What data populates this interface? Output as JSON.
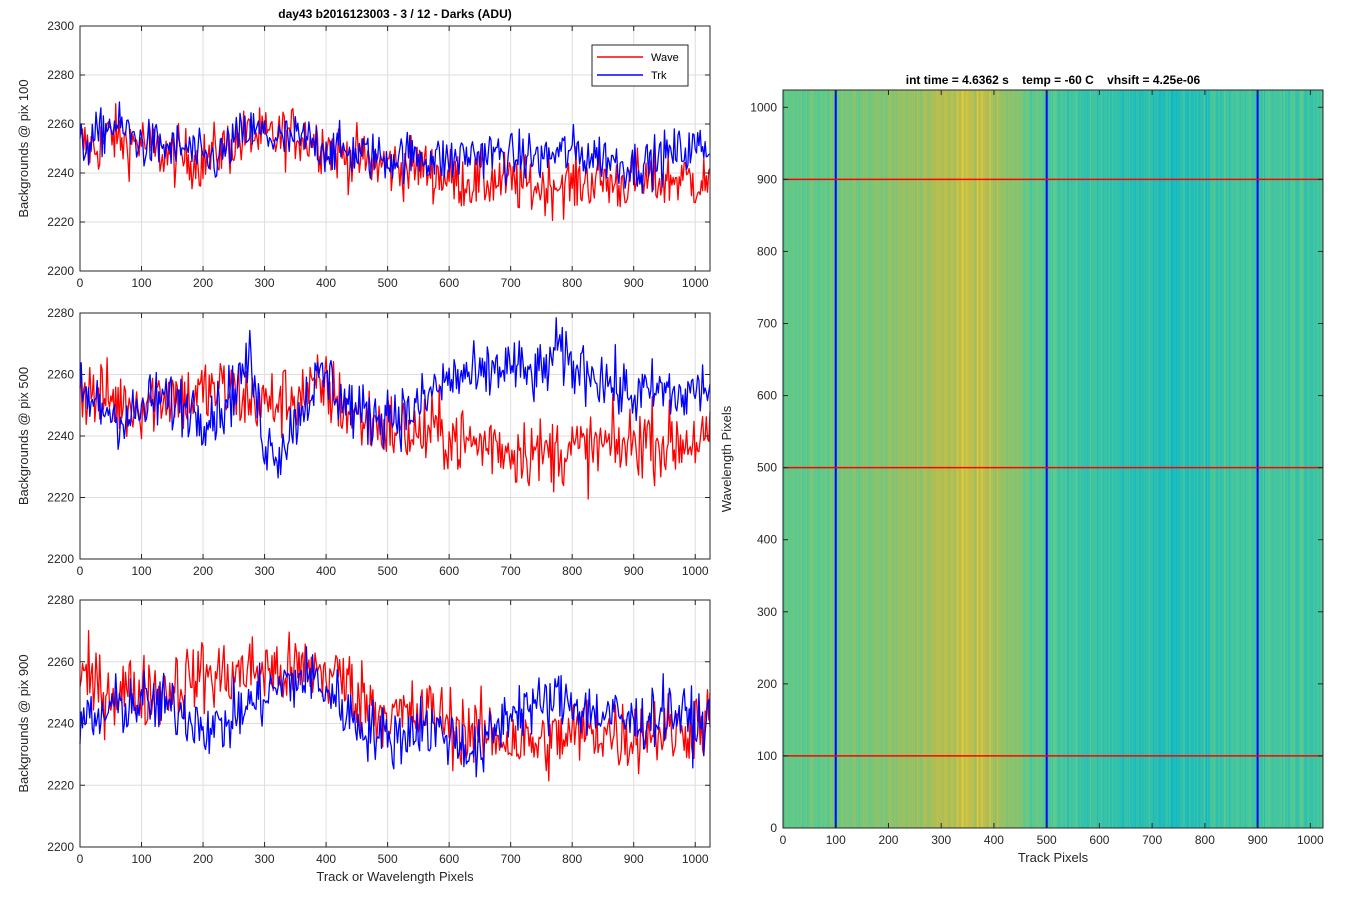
{
  "figure": {
    "main_title": "day43 b2016123003 - 3 / 12 - Darks (ADU)"
  },
  "chart_data": [
    {
      "type": "line",
      "id": "top",
      "ylabel": "Backgrounds @ pix 100",
      "xlabel": "",
      "xlim": [
        0,
        1024
      ],
      "ylim": [
        2200,
        2300
      ],
      "xticks": [
        0,
        100,
        200,
        300,
        400,
        500,
        600,
        700,
        800,
        900,
        1000
      ],
      "yticks": [
        2200,
        2220,
        2240,
        2260,
        2280,
        2300
      ],
      "grid": true,
      "legend_position": "top-right",
      "series": [
        {
          "name": "Wave",
          "color": "#ff0000",
          "x": [
            0,
            25,
            50,
            75,
            100,
            125,
            150,
            175,
            200,
            225,
            250,
            275,
            300,
            325,
            350,
            375,
            400,
            425,
            450,
            475,
            500,
            525,
            550,
            575,
            600,
            625,
            650,
            675,
            700,
            725,
            750,
            775,
            800,
            825,
            850,
            875,
            900,
            925,
            950,
            975,
            1000,
            1024
          ],
          "y": [
            2252,
            2250,
            2256,
            2252,
            2253,
            2249,
            2247,
            2246,
            2245,
            2249,
            2252,
            2255,
            2254,
            2255,
            2256,
            2254,
            2252,
            2247,
            2246,
            2244,
            2243,
            2242,
            2243,
            2240,
            2238,
            2237,
            2236,
            2237,
            2236,
            2235,
            2234,
            2236,
            2235,
            2237,
            2237,
            2235,
            2238,
            2236,
            2237,
            2238,
            2237,
            2236
          ],
          "noise": 6
        },
        {
          "name": "Trk",
          "color": "#0000ff",
          "x": [
            0,
            25,
            50,
            75,
            100,
            125,
            150,
            175,
            200,
            225,
            250,
            275,
            300,
            325,
            350,
            375,
            400,
            425,
            450,
            475,
            500,
            525,
            550,
            575,
            600,
            625,
            650,
            675,
            700,
            725,
            750,
            775,
            800,
            825,
            850,
            875,
            900,
            925,
            950,
            975,
            1000,
            1024
          ],
          "y": [
            2250,
            2254,
            2260,
            2257,
            2252,
            2251,
            2250,
            2250,
            2245,
            2246,
            2253,
            2257,
            2256,
            2253,
            2254,
            2253,
            2250,
            2249,
            2248,
            2247,
            2246,
            2247,
            2247,
            2246,
            2245,
            2247,
            2248,
            2248,
            2246,
            2247,
            2246,
            2248,
            2249,
            2247,
            2247,
            2244,
            2243,
            2244,
            2247,
            2249,
            2250,
            2252
          ],
          "noise": 5
        }
      ]
    },
    {
      "type": "line",
      "id": "middle",
      "ylabel": "Backgrounds @ pix 500",
      "xlabel": "",
      "xlim": [
        0,
        1024
      ],
      "ylim": [
        2200,
        2280
      ],
      "xticks": [
        0,
        100,
        200,
        300,
        400,
        500,
        600,
        700,
        800,
        900,
        1000
      ],
      "yticks": [
        2200,
        2220,
        2240,
        2260,
        2280
      ],
      "grid": true,
      "series": [
        {
          "name": "Wave",
          "color": "#ff0000",
          "x": [
            0,
            25,
            50,
            75,
            100,
            125,
            150,
            175,
            200,
            225,
            250,
            275,
            300,
            325,
            350,
            375,
            400,
            425,
            450,
            475,
            500,
            525,
            550,
            575,
            600,
            625,
            650,
            675,
            700,
            725,
            750,
            775,
            800,
            825,
            850,
            875,
            900,
            925,
            950,
            975,
            1000,
            1024
          ],
          "y": [
            2256,
            2253,
            2252,
            2250,
            2251,
            2253,
            2254,
            2252,
            2254,
            2255,
            2254,
            2252,
            2250,
            2251,
            2253,
            2254,
            2256,
            2250,
            2246,
            2245,
            2243,
            2242,
            2240,
            2242,
            2240,
            2238,
            2237,
            2238,
            2235,
            2236,
            2234,
            2235,
            2236,
            2235,
            2237,
            2236,
            2238,
            2240,
            2237,
            2238,
            2239,
            2238
          ],
          "noise": 6
        },
        {
          "name": "Trk",
          "color": "#0000ff",
          "x": [
            0,
            25,
            50,
            75,
            100,
            125,
            150,
            175,
            200,
            225,
            250,
            275,
            300,
            325,
            350,
            375,
            400,
            425,
            450,
            475,
            500,
            525,
            550,
            575,
            600,
            625,
            650,
            675,
            700,
            725,
            750,
            775,
            800,
            825,
            850,
            875,
            900,
            925,
            950,
            975,
            1000,
            1024
          ],
          "y": [
            2254,
            2250,
            2248,
            2245,
            2248,
            2252,
            2251,
            2250,
            2247,
            2248,
            2255,
            2265,
            2238,
            2235,
            2245,
            2255,
            2260,
            2252,
            2248,
            2246,
            2248,
            2247,
            2249,
            2255,
            2258,
            2260,
            2258,
            2262,
            2263,
            2260,
            2260,
            2268,
            2262,
            2262,
            2259,
            2255,
            2253,
            2254,
            2255,
            2252,
            2255,
            2256
          ],
          "noise": 5
        }
      ]
    },
    {
      "type": "line",
      "id": "bottom",
      "ylabel": "Backgrounds @ pix 900",
      "xlabel": "Track or Wavelength Pixels",
      "xlim": [
        0,
        1024
      ],
      "ylim": [
        2200,
        2280
      ],
      "xticks": [
        0,
        100,
        200,
        300,
        400,
        500,
        600,
        700,
        800,
        900,
        1000
      ],
      "yticks": [
        2200,
        2220,
        2240,
        2260,
        2280
      ],
      "grid": true,
      "series": [
        {
          "name": "Wave",
          "color": "#ff0000",
          "x": [
            0,
            25,
            50,
            75,
            100,
            125,
            150,
            175,
            200,
            225,
            250,
            275,
            300,
            325,
            350,
            375,
            400,
            425,
            450,
            475,
            500,
            525,
            550,
            575,
            600,
            625,
            650,
            675,
            700,
            725,
            750,
            775,
            800,
            825,
            850,
            875,
            900,
            925,
            950,
            975,
            1000,
            1024
          ],
          "y": [
            2255,
            2252,
            2250,
            2251,
            2250,
            2251,
            2252,
            2254,
            2256,
            2255,
            2256,
            2257,
            2258,
            2256,
            2257,
            2258,
            2256,
            2255,
            2250,
            2246,
            2243,
            2242,
            2243,
            2244,
            2240,
            2238,
            2236,
            2236,
            2235,
            2234,
            2233,
            2235,
            2236,
            2238,
            2238,
            2236,
            2236,
            2238,
            2238,
            2237,
            2240,
            2240
          ],
          "noise": 6
        },
        {
          "name": "Trk",
          "color": "#0000ff",
          "x": [
            0,
            25,
            50,
            75,
            100,
            125,
            150,
            175,
            200,
            225,
            250,
            275,
            300,
            325,
            350,
            375,
            400,
            425,
            450,
            475,
            500,
            525,
            550,
            575,
            600,
            625,
            650,
            675,
            700,
            725,
            750,
            775,
            800,
            825,
            850,
            875,
            900,
            925,
            950,
            975,
            1000,
            1024
          ],
          "y": [
            2242,
            2240,
            2245,
            2246,
            2247,
            2246,
            2245,
            2243,
            2240,
            2238,
            2242,
            2246,
            2249,
            2252,
            2254,
            2255,
            2251,
            2246,
            2240,
            2238,
            2235,
            2236,
            2240,
            2238,
            2236,
            2233,
            2230,
            2238,
            2244,
            2246,
            2245,
            2248,
            2247,
            2244,
            2243,
            2242,
            2240,
            2242,
            2244,
            2243,
            2240,
            2240
          ],
          "noise": 5
        }
      ]
    },
    {
      "type": "heatmap",
      "id": "image",
      "title": "int time = 4.6362 s    temp = -60 C    vhsift = 4.25e-06",
      "xlabel": "Track Pixels",
      "ylabel": "Wavelength Pixels",
      "xlim": [
        0,
        1024
      ],
      "ylim": [
        0,
        1024
      ],
      "xticks": [
        0,
        100,
        200,
        300,
        400,
        500,
        600,
        700,
        800,
        900,
        1000
      ],
      "yticks": [
        0,
        100,
        200,
        300,
        400,
        500,
        600,
        700,
        800,
        900,
        1000
      ],
      "colormap": "parula",
      "column_profile": {
        "x": [
          0,
          50,
          100,
          150,
          200,
          250,
          300,
          350,
          375,
          400,
          450,
          500,
          550,
          600,
          650,
          700,
          750,
          800,
          850,
          900,
          950,
          1000,
          1024
        ],
        "level": [
          0.5,
          0.52,
          0.54,
          0.56,
          0.58,
          0.62,
          0.66,
          0.7,
          0.7,
          0.64,
          0.56,
          0.48,
          0.44,
          0.42,
          0.4,
          0.4,
          0.38,
          0.4,
          0.44,
          0.46,
          0.46,
          0.46,
          0.46
        ]
      },
      "vertical_lines": {
        "color": "#0000ff",
        "x": [
          100,
          500,
          900
        ]
      },
      "horizontal_lines": {
        "color": "#ff0000",
        "y": [
          100,
          500,
          900
        ]
      }
    }
  ],
  "legend": {
    "items": [
      {
        "label": "Wave",
        "color": "#ff0000"
      },
      {
        "label": "Trk",
        "color": "#0000ff"
      }
    ]
  }
}
